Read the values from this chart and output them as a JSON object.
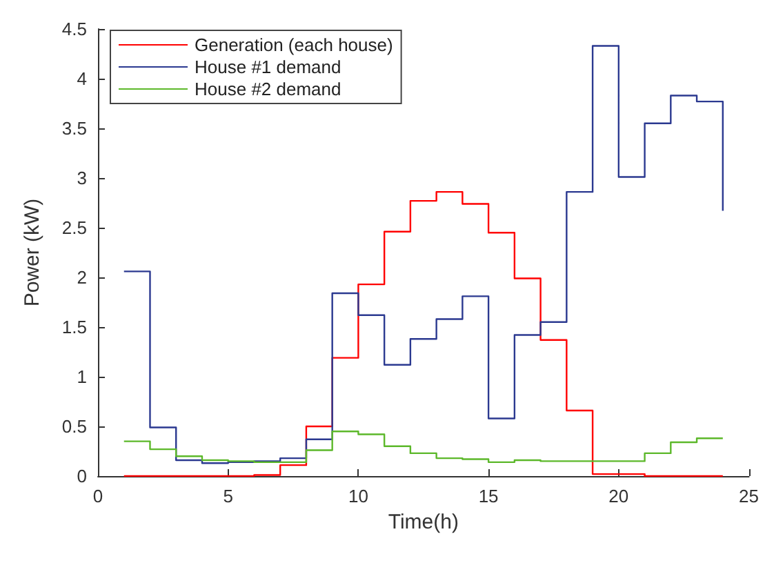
{
  "chart_data": {
    "type": "step",
    "xlabel": "Time(h)",
    "ylabel": "Power (kW)",
    "x": [
      1,
      2,
      3,
      4,
      5,
      6,
      7,
      8,
      9,
      10,
      11,
      12,
      13,
      14,
      15,
      16,
      17,
      18,
      19,
      20,
      21,
      22,
      23,
      24
    ],
    "series": [
      {
        "name": "Generation (each house)",
        "color": "#ff0000",
        "values": [
          0,
          0,
          0,
          0,
          0,
          0.01,
          0.11,
          0.5,
          1.19,
          1.93,
          2.46,
          2.77,
          2.86,
          2.74,
          2.45,
          1.99,
          1.37,
          0.66,
          0.02,
          0.02,
          0,
          0,
          0,
          0
        ]
      },
      {
        "name": "House #1 demand",
        "color": "#2b3990",
        "values": [
          2.06,
          0.49,
          0.16,
          0.13,
          0.14,
          0.15,
          0.18,
          0.37,
          1.84,
          1.62,
          1.12,
          1.38,
          1.58,
          1.81,
          0.58,
          1.42,
          1.55,
          2.86,
          4.33,
          3.01,
          3.55,
          3.83,
          3.77,
          2.67
        ]
      },
      {
        "name": "House #2 demand",
        "color": "#5cb82a",
        "values": [
          0.35,
          0.27,
          0.2,
          0.16,
          0.15,
          0.14,
          0.14,
          0.26,
          0.45,
          0.42,
          0.3,
          0.23,
          0.18,
          0.17,
          0.14,
          0.16,
          0.15,
          0.15,
          0.15,
          0.15,
          0.23,
          0.34,
          0.38,
          0.38
        ]
      }
    ],
    "xlim": [
      0,
      25
    ],
    "xticks": [
      0,
      5,
      10,
      15,
      20,
      25
    ],
    "ylim": [
      0,
      4.5
    ],
    "yticks": [
      0,
      0.5,
      1,
      1.5,
      2,
      2.5,
      3,
      3.5,
      4,
      4.5
    ],
    "grid": false,
    "legend": "top left"
  }
}
